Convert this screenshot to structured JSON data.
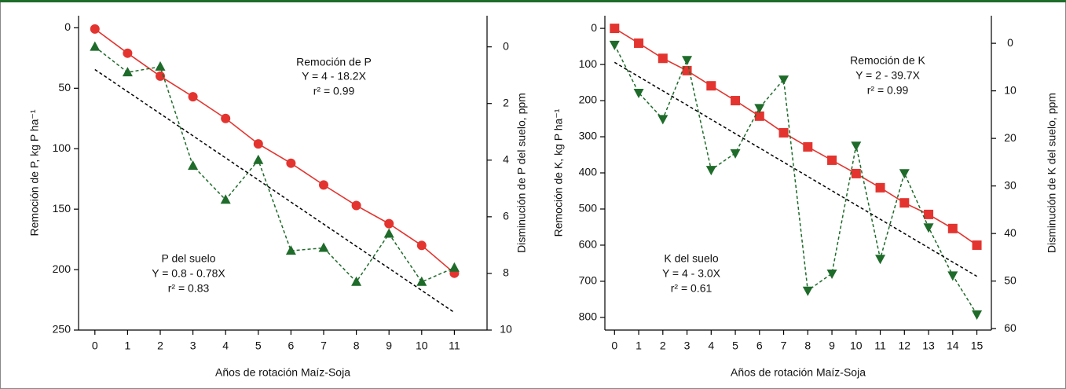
{
  "chart_data": [
    {
      "type": "line",
      "x": [
        0,
        1,
        2,
        3,
        4,
        5,
        6,
        7,
        8,
        9,
        10,
        11
      ],
      "xlim": [
        -0.5,
        12.0
      ],
      "xticks": [
        0,
        1,
        2,
        3,
        4,
        5,
        6,
        7,
        8,
        9,
        10,
        11
      ],
      "xlabel": "Años de rotación Maíz-Soja",
      "ylabel": "Remoción de P, kg P ha⁻¹",
      "y2label": "Disminución de P del  suelo, ppm",
      "ylim": [
        250,
        -10
      ],
      "yticks": [
        0,
        50,
        100,
        150,
        200,
        250
      ],
      "y2lim": [
        10,
        -1.1
      ],
      "y2ticks": [
        0,
        2,
        4,
        6,
        8,
        10
      ],
      "annotations": [
        "Remoción de P",
        "Y = 4 - 18.2X",
        "r² = 0.99",
        "P del suelo",
        "Y = 0.8 - 0.78X",
        "r² = 0.83"
      ],
      "series": [
        {
          "color": "#e3342f",
          "marker": "circle",
          "linestyle": "solid",
          "values": [
            1,
            21,
            40,
            57,
            75,
            96,
            112,
            130,
            147,
            162,
            180,
            203
          ]
        },
        {
          "color": "#1e6b2a",
          "marker": "triangle-up",
          "linestyle": "dashed",
          "axis": "y2",
          "values": [
            0.0,
            0.9,
            0.7,
            4.2,
            5.4,
            4.0,
            7.2,
            7.1,
            8.3,
            6.6,
            8.3,
            7.8
          ]
        },
        {
          "color": "#000000",
          "marker": "none",
          "linestyle": "dashed",
          "axis": "y2",
          "x": [
            0,
            11
          ],
          "values": [
            0.8,
            9.38
          ]
        }
      ]
    },
    {
      "type": "line",
      "x": [
        0,
        1,
        2,
        3,
        4,
        5,
        6,
        7,
        8,
        9,
        10,
        11,
        12,
        13,
        14,
        15
      ],
      "xlim": [
        -0.4,
        15.6
      ],
      "xticks": [
        0,
        1,
        2,
        3,
        4,
        5,
        6,
        7,
        8,
        9,
        10,
        11,
        12,
        13,
        14,
        15
      ],
      "xlabel": "Años de rotación Maíz-Soja",
      "ylabel": "Remoción de K, kg P ha⁻¹",
      "y2label": "Disminución de K del  suelo, ppm",
      "ylim": [
        835,
        -35
      ],
      "yticks": [
        0,
        100,
        200,
        300,
        400,
        500,
        600,
        700,
        800
      ],
      "y2lim": [
        60.3,
        -5.8
      ],
      "y2ticks": [
        0,
        10,
        20,
        30,
        40,
        50,
        60
      ],
      "annotations": [
        "Remoción de K",
        "Y = 2 - 39.7X",
        "r² = 0.99",
        "K del suelo",
        "Y = 4 - 3.0X",
        "r² = 0.61"
      ],
      "series": [
        {
          "color": "#e3342f",
          "marker": "square",
          "linestyle": "solid",
          "values": [
            0,
            41,
            83,
            117,
            159,
            200,
            243,
            289,
            328,
            365,
            402,
            441,
            483,
            515,
            554,
            600
          ]
        },
        {
          "color": "#1e6b2a",
          "marker": "triangle-down",
          "linestyle": "dashed",
          "axis": "y2",
          "values": [
            0.3,
            10.4,
            15.9,
            3.5,
            26.6,
            23.1,
            13.6,
            7.6,
            52,
            48.4,
            21.5,
            45.3,
            27.3,
            38.7,
            48.8,
            57
          ]
        },
        {
          "color": "#000000",
          "marker": "none",
          "linestyle": "dashed",
          "axis": "y2",
          "x": [
            0,
            15
          ],
          "values": [
            4,
            49
          ]
        }
      ]
    }
  ]
}
